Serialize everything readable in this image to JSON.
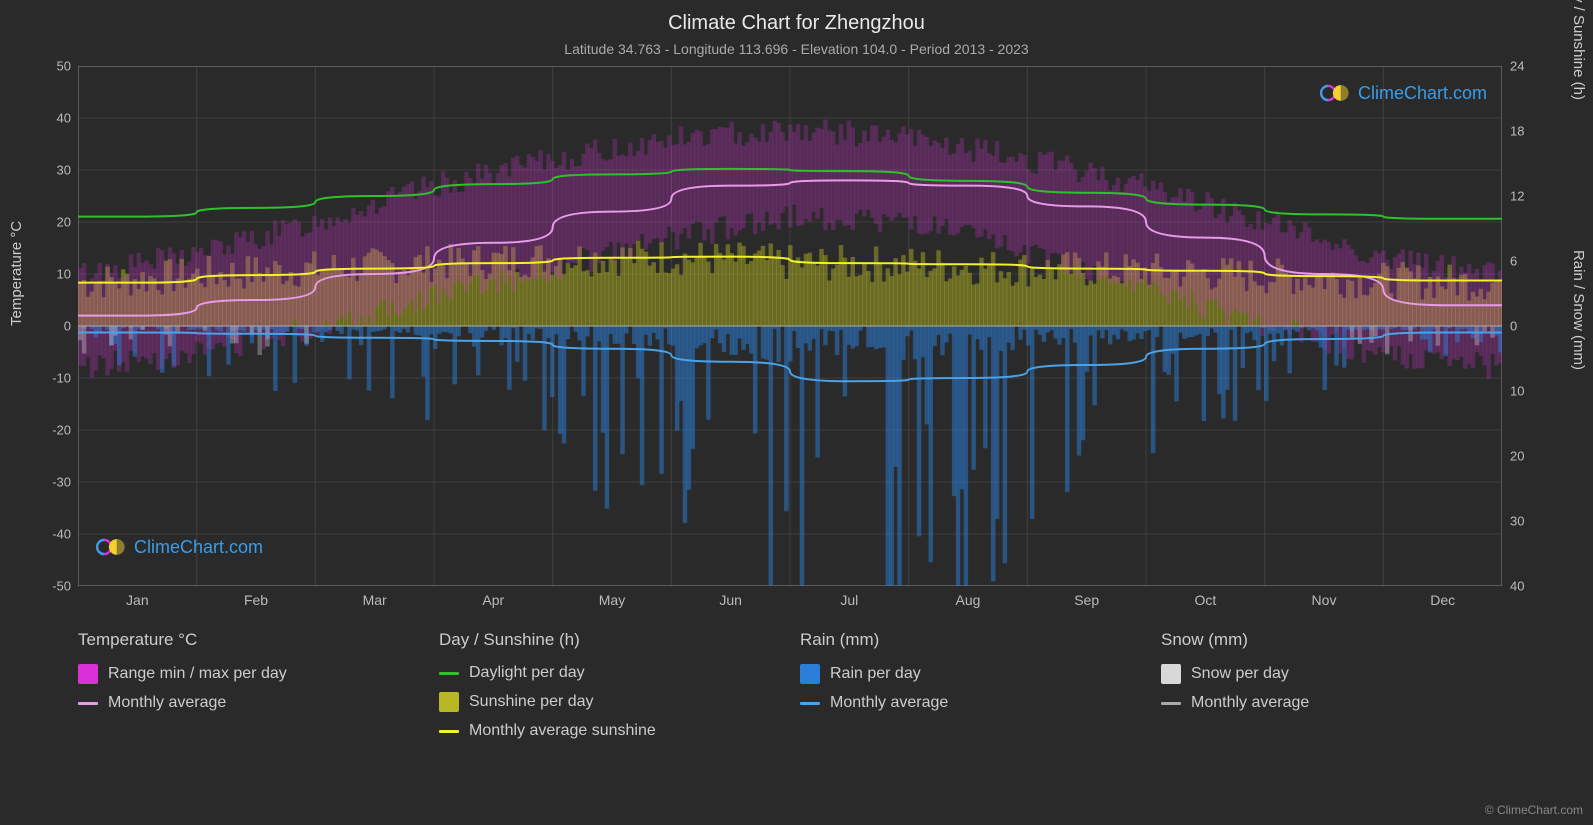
{
  "title": "Climate Chart for Zhengzhou",
  "subtitle": "Latitude 34.763 - Longitude 113.696 - Elevation 104.0 - Period 2013 - 2023",
  "copyright": "© ClimeChart.com",
  "watermark_text": "ClimeChart.com",
  "axes": {
    "left_label": "Temperature °C",
    "right_top_label": "Day / Sunshine (h)",
    "right_bot_label": "Rain / Snow (mm)",
    "temp_ylim": [
      -50,
      50
    ],
    "temp_ticks": [
      -50,
      -40,
      -30,
      -20,
      -10,
      0,
      10,
      20,
      30,
      40,
      50
    ],
    "daylight_ticks": [
      0,
      6,
      12,
      18,
      24
    ],
    "rain_ticks": [
      0,
      10,
      20,
      30,
      40
    ],
    "months": [
      "Jan",
      "Feb",
      "Mar",
      "Apr",
      "May",
      "Jun",
      "Jul",
      "Aug",
      "Sep",
      "Oct",
      "Nov",
      "Dec"
    ]
  },
  "colors": {
    "background": "#2a2a2a",
    "grid": "#555555",
    "text": "#cccccc",
    "temp_range": "#d932d9",
    "temp_avg_line": "#e89be8",
    "daylight_line": "#2ec22a",
    "sunshine_bar": "#b8b824",
    "sunshine_line": "#f2f22a",
    "rain_bar": "#2a7ed8",
    "rain_line": "#4aa2e8",
    "snow_bar": "#d8d8d8",
    "snow_line": "#aaaaaa",
    "watermark_blue": "#3a9de8"
  },
  "series": {
    "temp_avg": [
      2,
      5,
      10,
      16,
      22,
      27,
      28,
      27,
      23,
      17,
      10,
      4
    ],
    "temp_max_band": [
      10,
      14,
      20,
      27,
      32,
      36,
      38,
      36,
      32,
      27,
      20,
      13
    ],
    "temp_min_band": [
      -8,
      -5,
      0,
      6,
      11,
      17,
      21,
      20,
      14,
      7,
      0,
      -6
    ],
    "daylight_hours": [
      10.1,
      10.9,
      12.0,
      13.1,
      14.0,
      14.5,
      14.3,
      13.4,
      12.3,
      11.2,
      10.3,
      9.9
    ],
    "sunshine_monthly": [
      4.0,
      4.7,
      5.3,
      5.8,
      6.3,
      6.4,
      5.8,
      5.7,
      5.3,
      5.1,
      4.6,
      4.2
    ],
    "rain_monthly_mm": [
      1.0,
      1.2,
      1.8,
      2.3,
      3.5,
      5.5,
      8.5,
      8.0,
      6.0,
      3.5,
      2.0,
      1.0
    ]
  },
  "legend_groups": [
    {
      "title": "Temperature °C",
      "items": [
        {
          "kind": "swatch",
          "color": "#d932d9",
          "label": "Range min / max per day"
        },
        {
          "kind": "line",
          "color": "#e89be8",
          "label": "Monthly average"
        }
      ]
    },
    {
      "title": "Day / Sunshine (h)",
      "items": [
        {
          "kind": "line",
          "color": "#2ec22a",
          "label": "Daylight per day"
        },
        {
          "kind": "swatch",
          "color": "#b8b824",
          "label": "Sunshine per day"
        },
        {
          "kind": "line",
          "color": "#f2f22a",
          "label": "Monthly average sunshine"
        }
      ]
    },
    {
      "title": "Rain (mm)",
      "items": [
        {
          "kind": "swatch",
          "color": "#2a7ed8",
          "label": "Rain per day"
        },
        {
          "kind": "line",
          "color": "#4aa2e8",
          "label": "Monthly average"
        }
      ]
    },
    {
      "title": "Snow (mm)",
      "items": [
        {
          "kind": "swatch",
          "color": "#d8d8d8",
          "label": "Snow per day"
        },
        {
          "kind": "line",
          "color": "#aaaaaa",
          "label": "Monthly average"
        }
      ]
    }
  ]
}
